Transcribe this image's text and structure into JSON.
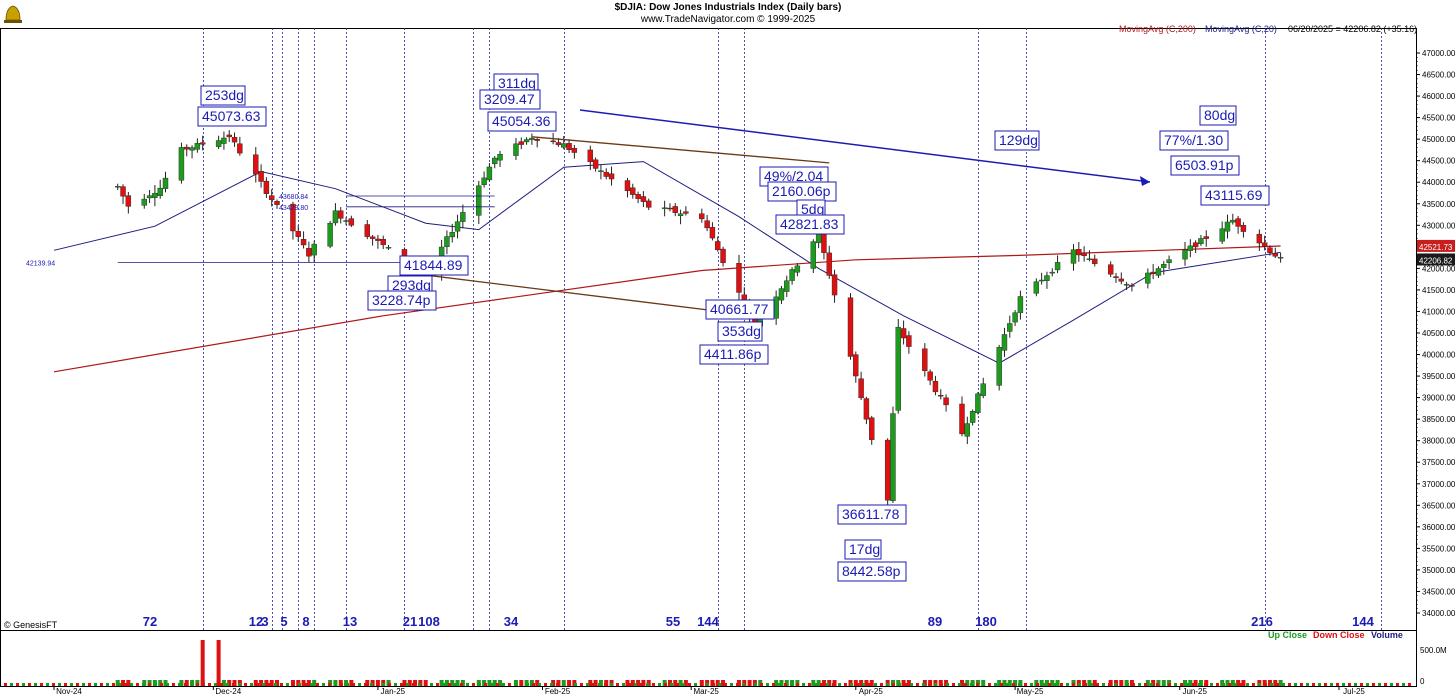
{
  "header": {
    "title": "$DJIA:  Dow Jones Industrials Index  (Daily bars)",
    "subtitle": "www.TradeNavigator.com © 1999-2025"
  },
  "legend": {
    "ma200": "MovingAvg (C,200)",
    "ma20": "MovingAvg (C,20)",
    "quote": "06/20/2025 = 42206.82 (+35.16)",
    "up_close": "Up Close",
    "down_close": "Down Close",
    "volume": "Volume"
  },
  "watermark": "© GenesisFT",
  "colors": {
    "up": "#1e9a1e",
    "down": "#dd1111",
    "ma200": "#b01818",
    "ma20": "#1c1c80",
    "annotation": "#1b1bb5",
    "trendline": "#6b3a16",
    "cycle_line": "#2020a0",
    "last_price_bg": "#1a1a1a",
    "ma200_tag_bg": "#c81e1e"
  },
  "chart_data": {
    "type": "candlestick",
    "title": "$DJIA:  Dow Jones Industrials Index  (Daily bars)",
    "x_labels": [
      "Nov-24",
      "Dec-24",
      "Jan-25",
      "Feb-25",
      "Mar-25",
      "Apr-25",
      "May-25",
      "Jun-25",
      "Jul-25"
    ],
    "ylim": [
      33700,
      47300
    ],
    "y_ticks": [
      "34000.00",
      "34500.00",
      "35000.00",
      "35500.00",
      "36000.00",
      "36500.00",
      "37000.00",
      "37500.00",
      "38000.00",
      "38500.00",
      "39000.00",
      "39500.00",
      "40000.00",
      "40500.00",
      "41000.00",
      "41500.00",
      "42000.00",
      "42500.00",
      "43000.00",
      "43500.00",
      "44000.00",
      "44500.00",
      "45000.00",
      "45500.00",
      "46000.00",
      "46500.00",
      "47000.00"
    ],
    "grid": false,
    "price_path": [
      {
        "date": "Nov-13-24",
        "value": 43900
      },
      {
        "date": "Nov-15-24",
        "value": 43450
      },
      {
        "date": "Nov-21-24",
        "value": 43870
      },
      {
        "date": "Nov-25-24",
        "value": 44750
      },
      {
        "date": "Dec-04-24",
        "value": 45073.63
      },
      {
        "date": "Dec-19-24",
        "value": 42325
      },
      {
        "date": "Dec-24-24",
        "value": 43300
      },
      {
        "date": "Jan-10-25",
        "value": 41844.89
      },
      {
        "date": "Jan-23-25",
        "value": 44560
      },
      {
        "date": "Jan-30-25",
        "value": 45054.36
      },
      {
        "date": "Feb-05-25",
        "value": 44870
      },
      {
        "date": "Feb-21-25",
        "value": 43430
      },
      {
        "date": "Mar-03-25",
        "value": 43190
      },
      {
        "date": "Mar-13-25",
        "value": 40661.77
      },
      {
        "date": "Mar-25-25",
        "value": 42821.83
      },
      {
        "date": "Apr-07-25",
        "value": 36611.78
      },
      {
        "date": "Apr-09-25",
        "value": 40600
      },
      {
        "date": "Apr-21-25",
        "value": 38170
      },
      {
        "date": "May-02-25",
        "value": 41317
      },
      {
        "date": "May-12-25",
        "value": 42410
      },
      {
        "date": "May-23-25",
        "value": 41600
      },
      {
        "date": "Jun-11-25",
        "value": 43115.69
      },
      {
        "date": "Jun-20-25",
        "value": 42206.82
      }
    ],
    "series": [
      {
        "name": "MovingAvg (C,200)",
        "values": [
          {
            "date": "Nov-01-24",
            "value": 39600
          },
          {
            "date": "Jan-02-25",
            "value": 40900
          },
          {
            "date": "Mar-03-25",
            "value": 41950
          },
          {
            "date": "Apr-01-25",
            "value": 42200
          },
          {
            "date": "May-01-25",
            "value": 42300
          },
          {
            "date": "Jun-20-25",
            "value": 42520
          }
        ]
      },
      {
        "name": "MovingAvg (C,20)",
        "values": [
          {
            "date": "Nov-01-24",
            "value": 42420
          },
          {
            "date": "Nov-20-24",
            "value": 42980
          },
          {
            "date": "Dec-10-24",
            "value": 44250
          },
          {
            "date": "Dec-24-24",
            "value": 43850
          },
          {
            "date": "Jan-10-25",
            "value": 43050
          },
          {
            "date": "Jan-20-25",
            "value": 42900
          },
          {
            "date": "Feb-05-25",
            "value": 44350
          },
          {
            "date": "Feb-20-25",
            "value": 44480
          },
          {
            "date": "Mar-10-25",
            "value": 43200
          },
          {
            "date": "Mar-25-25",
            "value": 42000
          },
          {
            "date": "Apr-10-25",
            "value": 40900
          },
          {
            "date": "Apr-28-25",
            "value": 39800
          },
          {
            "date": "May-12-25",
            "value": 40800
          },
          {
            "date": "May-27-25",
            "value": 41900
          },
          {
            "date": "Jun-20-25",
            "value": 42370
          }
        ]
      },
      {
        "name": "Volume",
        "values": [
          {
            "date": "Nov-29-24",
            "value": "spike"
          },
          {
            "date": "Dec-02-24",
            "value": "spike"
          }
        ]
      }
    ],
    "last_price": "42206.82",
    "ma200_last": "42521.73",
    "hline_labels": [
      "42139.94",
      "43680.84",
      "43429.80"
    ],
    "volume_ticks": [
      "500.0M",
      "0"
    ],
    "cycle_counts": [
      "72",
      "12",
      "3",
      "5",
      "8",
      "13",
      "21",
      "108",
      "34",
      "55",
      "144",
      "89",
      "180",
      "216",
      "144"
    ],
    "annotations": [
      "253dg",
      "45073.63",
      "311dg",
      "3209.47",
      "45054.36",
      "41844.89",
      "293dg",
      "3228.74p",
      "49%/2.04",
      "2160.06p",
      "5dg",
      "42821.83",
      "40661.77",
      "353dg",
      "4411.86p",
      "36611.78",
      "17dg",
      "8442.58p",
      "129dg",
      "80dg",
      "77%/1.30",
      "6503.91p",
      "43115.69"
    ]
  }
}
